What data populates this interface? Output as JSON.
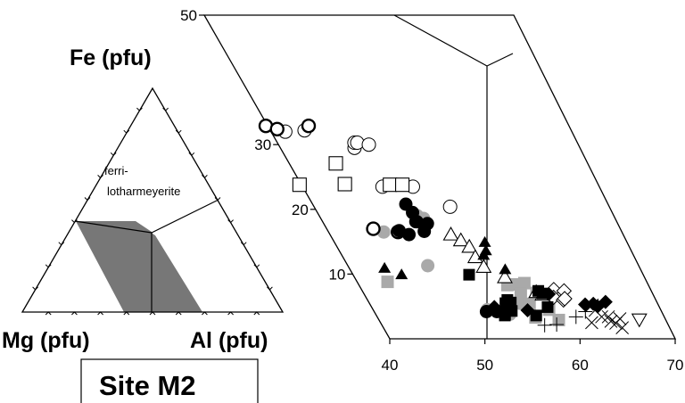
{
  "chart_data": [
    {
      "type": "ternary",
      "apex_labels": {
        "top": "Fe (pfu)",
        "left": "Mg (pfu)",
        "right": "Al (pfu)"
      },
      "field_label": [
        "ferri-",
        "lotharmeyerite"
      ],
      "panel_label": "Site M2",
      "shaded_field": "grey parallelogram in lower-central region",
      "colors": {
        "shade": "#777777"
      }
    },
    {
      "type": "scatter",
      "frame": "oblique ternary sub-region",
      "x_axis": {
        "range": [
          40,
          70
        ],
        "ticks": [
          "40",
          "50",
          "60",
          "70"
        ]
      },
      "y_axis": {
        "range": [
          0,
          50
        ],
        "ticks": [
          "10",
          "20",
          "30",
          "50"
        ]
      },
      "markers": {
        "open_circle": [
          [
            41.5,
            32
          ],
          [
            43.6,
            32.2
          ],
          [
            47.8,
            29.5
          ],
          [
            48.1,
            30.3
          ],
          [
            48.4,
            30.3
          ],
          [
            49.5,
            30
          ],
          [
            48.4,
            23.5
          ],
          [
            51.6,
            23.5
          ],
          [
            54.3,
            20.4
          ]
        ],
        "bold_open_circle": [
          [
            39.8,
            32.9
          ],
          [
            40.8,
            32.4
          ],
          [
            44.3,
            32.9
          ],
          [
            44.9,
            17
          ],
          [
            47.3,
            16.5
          ]
        ],
        "filled_circle": [
          [
            49.8,
            20.8
          ],
          [
            50,
            19.5
          ],
          [
            49.9,
            18.1
          ],
          [
            49.8,
            18.1
          ],
          [
            50.9,
            17.8
          ],
          [
            50.1,
            16.6
          ],
          [
            47.5,
            16.7
          ],
          [
            48.3,
            16.1
          ],
          [
            51.8,
            4.2
          ],
          [
            52.9,
            4.2
          ]
        ],
        "grey_circle": [
          [
            45.8,
            16.5
          ],
          [
            50.3,
            19
          ],
          [
            50.5,
            17.7
          ],
          [
            50.8,
            18.6
          ],
          [
            52,
            4.5
          ],
          [
            55.8,
            5.5
          ],
          [
            48.4,
            11.3
          ],
          [
            54.1,
            3.8
          ]
        ],
        "open_square": [
          [
            39.8,
            23.8
          ],
          [
            44.9,
            27.1
          ],
          [
            44.6,
            23.9
          ],
          [
            49.3,
            23.8
          ],
          [
            50.6,
            23.8
          ]
        ],
        "filled_square": [
          [
            52.2,
            9.9
          ],
          [
            54.3,
            5.5
          ],
          [
            54.7,
            6
          ],
          [
            54.9,
            5.6
          ],
          [
            53.5,
            3.6
          ],
          [
            54.5,
            4.3
          ],
          [
            56.8,
            3.6
          ],
          [
            53.6,
            3.8
          ],
          [
            58.5,
            7.4
          ],
          [
            58.5,
            4.9
          ],
          [
            58.8,
            7
          ]
        ],
        "grey_square": [
          [
            43.2,
            8.8
          ],
          [
            55.6,
            8.3
          ],
          [
            56.3,
            8.4
          ],
          [
            57.5,
            8.6
          ],
          [
            56.5,
            7
          ],
          [
            58.2,
            7.1
          ],
          [
            56.6,
            3.3
          ],
          [
            56.8,
            5.4
          ],
          [
            58.5,
            4.5
          ],
          [
            58.9,
            2.9
          ]
        ],
        "open_triangle": [
          [
            52.7,
            16.1
          ],
          [
            53.4,
            15.2
          ],
          [
            53.9,
            14.2
          ],
          [
            53.9,
            12.6
          ],
          [
            54.2,
            11.1
          ],
          [
            55.8,
            9.5
          ],
          [
            58.2,
            7.2
          ],
          [
            58.7,
            6.8
          ]
        ],
        "filled_triangle": [
          [
            55.8,
            14.9
          ],
          [
            55.4,
            13.6
          ],
          [
            54.9,
            12.9
          ],
          [
            43.7,
            10.9
          ],
          [
            45.1,
            9.9
          ],
          [
            56.3,
            10.7
          ]
        ],
        "filled_diamond": [
          [
            52.9,
            4.9
          ],
          [
            56.2,
            4.4
          ],
          [
            59.4,
            6.9
          ],
          [
            62.6,
            5.3
          ],
          [
            63.5,
            5.4
          ],
          [
            64.9,
            5.7
          ],
          [
            63.8,
            5
          ]
        ],
        "open_diamond": [
          [
            60.2,
            7.6
          ],
          [
            59.7,
            6.4
          ],
          [
            60.6,
            6
          ],
          [
            61.2,
            7.4
          ],
          [
            60.8,
            6.2
          ]
        ],
        "plus": [
          [
            57.1,
            2.1
          ],
          [
            58.4,
            2.2
          ],
          [
            60.9,
            3.4
          ],
          [
            62.2,
            4.2
          ]
        ],
        "cross": [
          [
            63.3,
            5.2
          ],
          [
            63.3,
            4.4
          ],
          [
            64.3,
            3.4
          ],
          [
            62.2,
            2.5
          ],
          [
            65.4,
            3.1
          ],
          [
            64.7,
            2.4
          ],
          [
            65.1,
            1.7
          ],
          [
            64.3,
            2.7
          ],
          [
            63.6,
            3.4
          ]
        ],
        "open_down_triangle": [
          [
            67.4,
            3
          ]
        ]
      }
    }
  ]
}
